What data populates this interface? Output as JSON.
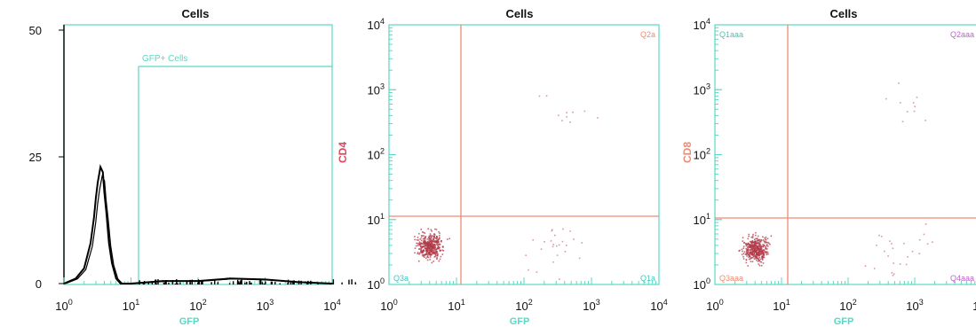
{
  "colors": {
    "axis": "#59d8c3",
    "gate": "#ef8a73",
    "histogram": "#000000",
    "dots": "#b23a48",
    "cd4_label": "#e0445a",
    "cd8_label": "#ef8a73",
    "q1": "#3fc7c0",
    "q2_cd4": "#ef8a73",
    "q2_cd8": "#c060d0",
    "q4_cd8": "#c060d0"
  },
  "panels": [
    {
      "title": "Cells",
      "xlabel": "GFP",
      "ylabel": "",
      "gate_label": "GFP+ Cells",
      "y_ticks": [
        "50",
        "25",
        "0"
      ]
    },
    {
      "title": "Cells",
      "xlabel": "GFP",
      "ylabel": "CD4",
      "quadrants": {
        "q1": "",
        "q2": "Q2a",
        "q3": "Q3a",
        "q4": "Q1a"
      }
    },
    {
      "title": "Cells",
      "xlabel": "GFP",
      "ylabel": "CD8",
      "quadrants": {
        "q1": "Q1aaa",
        "q2": "Q2aaa",
        "q3": "Q3aaa",
        "q4": "Q4aaa"
      }
    }
  ],
  "chart_data": [
    {
      "type": "area",
      "title": "Cells",
      "xlabel": "GFP",
      "ylabel": "",
      "x_scale": "log",
      "xlim": [
        1,
        10000
      ],
      "ylim": [
        0,
        50
      ],
      "x_ticks": [
        "10^0",
        "10^1",
        "10^2",
        "10^3",
        "10^4"
      ],
      "y_ticks": [
        0,
        25,
        50
      ],
      "gate": {
        "name": "GFP+ Cells",
        "x_range": [
          11,
          10000
        ]
      },
      "series": [
        {
          "x": [
            1.0,
            1.5,
            2.0,
            2.5,
            2.8,
            3.0,
            3.2,
            3.5,
            3.8,
            4.0,
            4.3,
            4.7,
            5.2,
            6.0,
            7.0,
            10,
            30,
            100,
            300,
            1000,
            3000,
            10000
          ],
          "values": [
            0,
            1,
            3,
            8,
            13,
            17,
            20,
            23,
            22,
            18,
            14,
            8,
            4,
            1,
            0,
            0,
            0.5,
            0.5,
            1,
            0.8,
            0.3,
            0
          ]
        }
      ]
    },
    {
      "type": "scatter",
      "title": "Cells",
      "xlabel": "GFP",
      "ylabel": "CD4",
      "x_scale": "log",
      "y_scale": "log",
      "xlim": [
        1,
        10000
      ],
      "ylim": [
        1,
        10000
      ],
      "gate": {
        "x": 11,
        "y": 11
      },
      "clusters": [
        {
          "quadrant": "Q3a",
          "center": [
            4,
            4
          ],
          "density": "high"
        },
        {
          "quadrant": "Q1a",
          "center": [
            300,
            4
          ],
          "density": "low"
        },
        {
          "quadrant": "Q2a",
          "center": [
            500,
            500
          ],
          "density": "very low"
        }
      ]
    },
    {
      "type": "scatter",
      "title": "Cells",
      "xlabel": "GFP",
      "ylabel": "CD8",
      "x_scale": "log",
      "y_scale": "log",
      "xlim": [
        1,
        10000
      ],
      "ylim": [
        1,
        10000
      ],
      "gate": {
        "x": 11,
        "y": 11
      },
      "clusters": [
        {
          "quadrant": "Q3aaa",
          "center": [
            4,
            3.5
          ],
          "density": "high"
        },
        {
          "quadrant": "Q4aaa",
          "center": [
            500,
            3
          ],
          "density": "low"
        },
        {
          "quadrant": "Q2aaa",
          "center": [
            700,
            500
          ],
          "density": "very low"
        }
      ]
    }
  ]
}
